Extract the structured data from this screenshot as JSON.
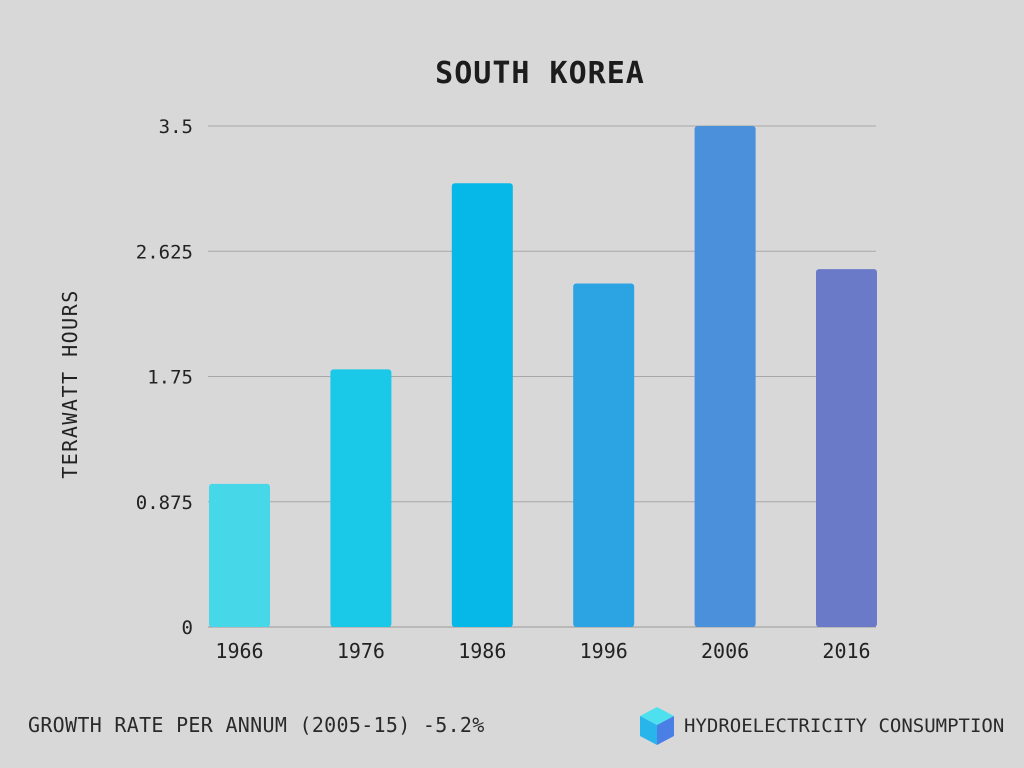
{
  "chart_data": {
    "type": "bar",
    "title": "SOUTH KOREA",
    "ylabel": "TERAWATT  HOURS",
    "xlabel": "",
    "categories": [
      "1966",
      "1976",
      "1986",
      "1996",
      "2006",
      "2016"
    ],
    "values": [
      1.0,
      1.8,
      3.1,
      2.4,
      3.5,
      2.5
    ],
    "ylim": [
      0,
      3.5
    ],
    "yticks": [
      "0",
      "0.875",
      "1.75",
      "2.625",
      "3.5"
    ],
    "grid": true,
    "bar_colors": [
      "#46d8e8",
      "#1ac8e8",
      "#05b8e8",
      "#2ca3e3",
      "#4b90db",
      "#6b7ac8"
    ]
  },
  "footer": {
    "growth_text": "GROWTH RATE PER ANNUM (2005-15) -5.2%",
    "category_label": "HYDROELECTRICITY CONSUMPTION",
    "icon": "cube-icon"
  }
}
